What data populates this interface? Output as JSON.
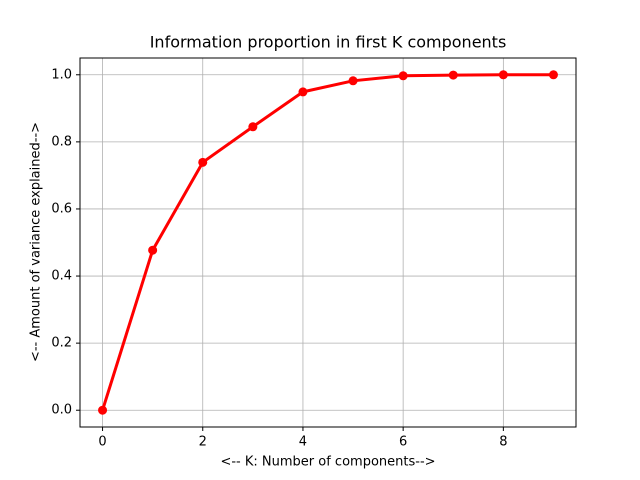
{
  "chart_data": {
    "type": "line",
    "title": "Information proportion in first K components",
    "x_label": "<-- K: Number of components-->",
    "y_label": "<-- Amount of variance explained-->",
    "x": [
      0,
      1,
      2,
      3,
      4,
      5,
      6,
      7,
      8,
      9
    ],
    "series": [
      {
        "color": "#ff0000",
        "values": [
          0,
          0.477,
          0.739,
          0.845,
          0.949,
          0.982,
          0.997,
          0.999,
          1.0,
          1.0
        ]
      }
    ],
    "xlim": [
      -0.45,
      9.45
    ],
    "ylim": [
      -0.05,
      1.05
    ],
    "xticks": [
      0,
      2,
      4,
      6,
      8
    ],
    "yticks": [
      {
        "value": 0,
        "label": "0.0"
      },
      {
        "value": 0.2,
        "label": "0.2"
      },
      {
        "value": 0.4,
        "label": "0.4"
      },
      {
        "value": 0.6,
        "label": "0.6"
      },
      {
        "value": 0.8,
        "label": "0.8"
      },
      {
        "value": 1.0,
        "label": "1.0"
      }
    ],
    "grid": true
  }
}
